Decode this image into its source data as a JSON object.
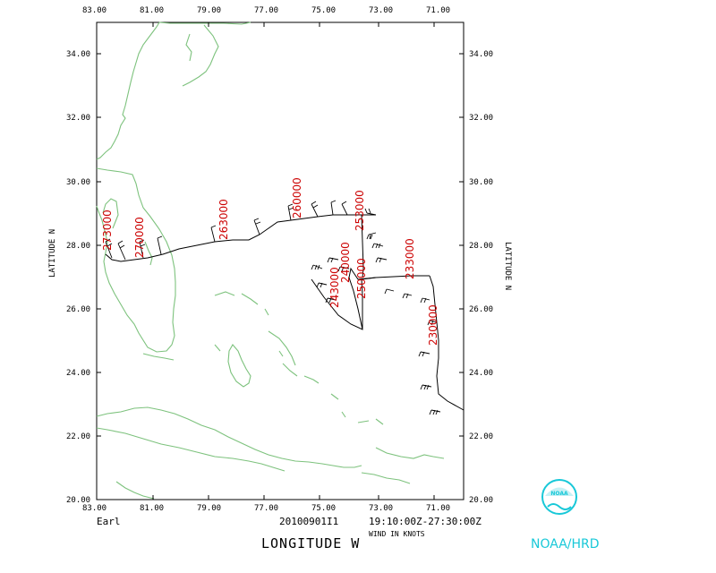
{
  "map": {
    "x_ticks": [
      "83.00",
      "81.00",
      "79.00",
      "77.00",
      "75.00",
      "73.00",
      "71.00"
    ],
    "y_ticks": [
      "34.00",
      "32.00",
      "30.00",
      "28.00",
      "26.00",
      "24.00",
      "22.00",
      "20.00"
    ],
    "corner_tl": "83.00",
    "corner_br": "20.00",
    "xlabel": "LONGITUDE   W",
    "ylabel_left": "LATITUDE   N",
    "ylabel_right": "LATITUDE   N",
    "storm": "Earl",
    "date": "20100901I1",
    "time_range": "19:10:00Z-27:30:00Z",
    "wind_units": "WIND IN KNOTS",
    "credit": "NOAA/HRD",
    "line_color": "#7dc27d",
    "label_color": "#cc0000",
    "logo_text": "NOAA",
    "station_times": [
      "273000",
      "270000",
      "263000",
      "260000",
      "253000",
      "240000",
      "243000",
      "250000",
      "233000",
      "230000"
    ]
  }
}
